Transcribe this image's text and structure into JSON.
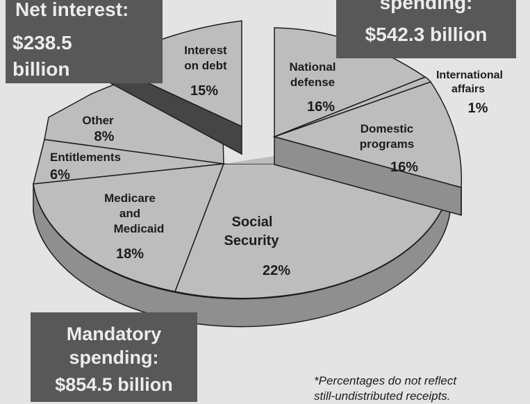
{
  "chart_data": {
    "type": "pie",
    "title": "",
    "slices": [
      {
        "label": "Interest on debt",
        "value": 15,
        "display": "15%",
        "group": "net_interest"
      },
      {
        "label": "National defense",
        "value": 16,
        "display": "16%",
        "group": "discretionary"
      },
      {
        "label": "International affairs",
        "value": 1,
        "display": "1%",
        "group": "discretionary"
      },
      {
        "label": "Domestic programs",
        "value": 16,
        "display": "16%",
        "group": "discretionary"
      },
      {
        "label": "Social Security",
        "value": 22,
        "display": "22%",
        "group": "mandatory"
      },
      {
        "label": "Medicare and Medicaid",
        "value": 18,
        "display": "18%",
        "group": "mandatory"
      },
      {
        "label": "Entitlements",
        "value": 6,
        "display": "6%",
        "group": "mandatory"
      },
      {
        "label": "Other",
        "value": 8,
        "display": "8%",
        "group": "mandatory"
      }
    ],
    "groups": {
      "net_interest": {
        "line1": "Net interest:",
        "line2": "$238.5",
        "line3": "billion"
      },
      "discretionary": {
        "line1": "spending:",
        "line2": "$542.3 billion"
      },
      "mandatory": {
        "line1": "Mandatory",
        "line2": "spending:",
        "line3": "$854.5 billion"
      }
    },
    "labels": {
      "interest": {
        "line1": "Interest",
        "line2": "on debt",
        "pct": "15%"
      },
      "defense": {
        "line1": "National",
        "line2": "defense",
        "pct": "16%"
      },
      "international": {
        "line1": "International",
        "line2": "affairs",
        "pct": "1%"
      },
      "domestic": {
        "line1": "Domestic",
        "line2": "programs",
        "pct": "16%"
      },
      "other": {
        "line1": "Other",
        "pct": "8%"
      },
      "entitlements": {
        "line1": "Entitlements",
        "pct": "6%"
      },
      "medicare": {
        "line1": "Medicare",
        "line2": "and",
        "line3": "Medicaid",
        "pct": "18%"
      },
      "social": {
        "line1": "Social",
        "line2": "Security",
        "pct": "22%"
      }
    },
    "footnote": {
      "line1": "*Percentages do not reflect",
      "line2": "still-undistributed receipts."
    },
    "colors": {
      "background": "#e4e4e4",
      "slice_fill": "#bdbdbd",
      "side_fill": "#8f8f8f",
      "interest_side": "#454545",
      "box_fill": "#585858",
      "box_text": "#ececec"
    }
  }
}
